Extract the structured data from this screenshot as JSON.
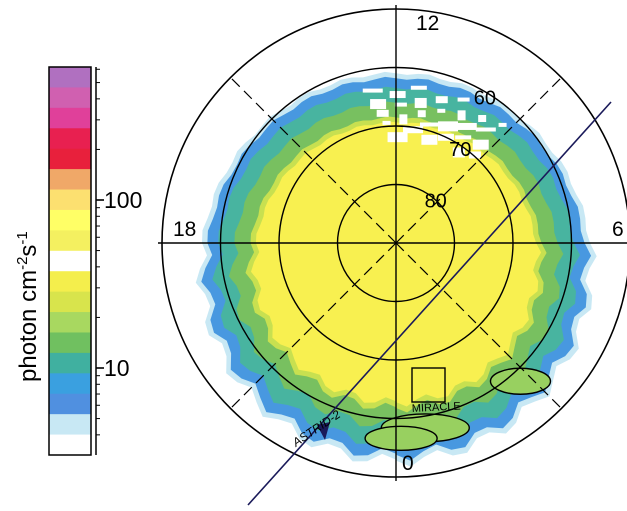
{
  "chart_data": {
    "type": "heatmap",
    "projection": "polar (magnetic local time vs. magnetic latitude)",
    "colorbar": {
      "unit_label": "photon cm",
      "unit_exp1": "-2",
      "unit_mid": "s",
      "unit_exp2": "-1",
      "scale": "log",
      "ticks": [
        {
          "value": 100,
          "label": "100"
        },
        {
          "value": 10,
          "label": "10"
        }
      ],
      "colors_top_to_bottom": [
        "#b070c0",
        "#d060b0",
        "#e0409a",
        "#e82050",
        "#e8203c",
        "#f0a868",
        "#fce070",
        "#ffff66",
        "#f4f060",
        "#ffffff",
        "#f4ee4c",
        "#d8e44c",
        "#a8d860",
        "#70c060",
        "#40b0a0",
        "#3aa0e0",
        "#5090e0",
        "#c8e8f4",
        "#ffffff"
      ]
    },
    "mlt_labels": [
      {
        "label": "12",
        "mlt": 12
      },
      {
        "label": "6",
        "mlt": 6
      },
      {
        "label": "18",
        "mlt": 18
      },
      {
        "label": "0",
        "mlt": 0
      }
    ],
    "latitude_rings": [
      {
        "label": "80",
        "lat": 80
      },
      {
        "label": "70",
        "lat": 70
      },
      {
        "label": "60",
        "lat": 60
      }
    ],
    "outer_latitude": 50,
    "emission_bands": [
      {
        "lat_poleward": 90,
        "color": "#f8f050"
      },
      {
        "lat_poleward": 63,
        "color": "#c8e050"
      },
      {
        "lat_poleward": 60,
        "color": "#78c060"
      },
      {
        "lat_poleward": 57,
        "color": "#48b4a0"
      },
      {
        "lat_poleward": 55,
        "color": "#4898e0"
      },
      {
        "lat_poleward": 54,
        "color": "#c8e8f4"
      }
    ],
    "instrument_tracks": [
      {
        "name": "ASTRID-2"
      },
      {
        "name": "MIRACLE"
      }
    ]
  }
}
